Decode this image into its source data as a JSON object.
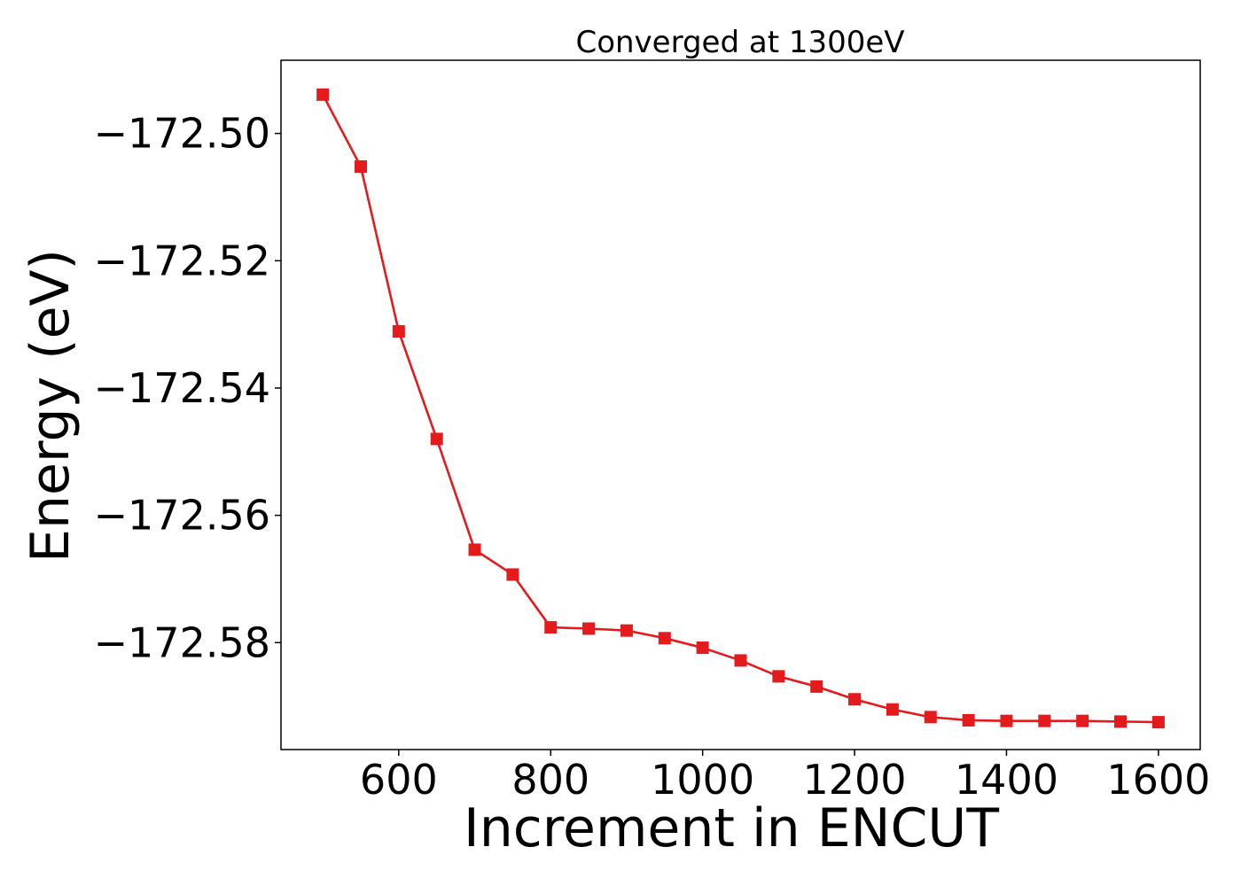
{
  "chart_data": {
    "type": "line",
    "title": "Converged at 1300eV",
    "xlabel": "Increment in ENCUT",
    "ylabel": "Energy (eV)",
    "xlim": [
      445,
      1655
    ],
    "ylim": [
      -172.5968,
      -172.4885
    ],
    "xticks": [
      600,
      800,
      1000,
      1200,
      1400,
      1600
    ],
    "yticks": [
      -172.5,
      -172.52,
      -172.54,
      -172.56,
      -172.58
    ],
    "ytick_labels": [
      "−172.50",
      "−172.52",
      "−172.54",
      "−172.56",
      "−172.58"
    ],
    "grid": false,
    "series": [
      {
        "color": "#e41a1c",
        "marker": "square",
        "x": [
          500,
          550,
          600,
          650,
          700,
          750,
          800,
          850,
          900,
          950,
          1000,
          1050,
          1100,
          1150,
          1200,
          1250,
          1300,
          1350,
          1400,
          1450,
          1500,
          1550,
          1600
        ],
        "y": [
          -172.4939,
          -172.5052,
          -172.5311,
          -172.548,
          -172.5654,
          -172.5693,
          -172.5776,
          -172.5778,
          -172.5781,
          -172.5793,
          -172.5808,
          -172.5828,
          -172.5853,
          -172.5869,
          -172.5889,
          -172.5905,
          -172.5917,
          -172.5922,
          -172.5923,
          -172.5923,
          -172.5923,
          -172.5924,
          -172.5925
        ]
      }
    ]
  }
}
